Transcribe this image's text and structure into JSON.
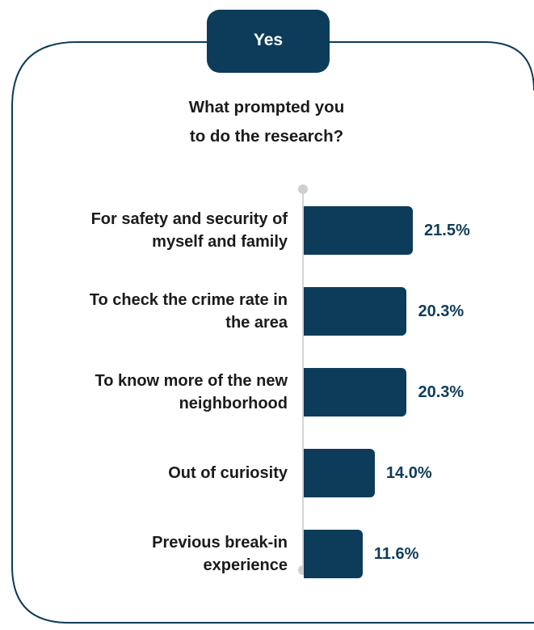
{
  "header": {
    "tab_label": "Yes"
  },
  "question": {
    "line1": "What prompted you",
    "line2": "to do the research?"
  },
  "colors": {
    "bar": "#0d3c5a",
    "value_text": "#0d3c5a",
    "frame": "#0d3c5a",
    "axis": "#d4d4d4"
  },
  "chart_data": {
    "type": "bar",
    "orientation": "horizontal",
    "categories": [
      [
        "For safety and security of",
        "myself and family"
      ],
      [
        "To check the crime rate in",
        "the area"
      ],
      [
        "To know more of the new",
        "neighborhood"
      ],
      [
        "Out of curiosity"
      ],
      [
        "Previous break-in",
        "experience"
      ]
    ],
    "values": [
      21.5,
      20.3,
      20.3,
      14.0,
      11.6
    ],
    "value_labels": [
      "21.5%",
      "20.3%",
      "20.3%",
      "14.0%",
      "11.6%"
    ],
    "grid": false,
    "legend": "none"
  }
}
